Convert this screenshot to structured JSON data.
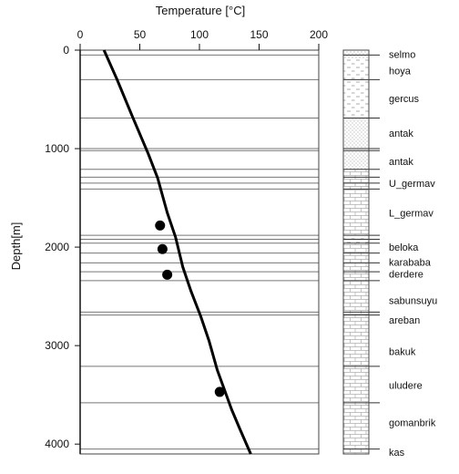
{
  "chart_data": {
    "type": "line",
    "xlabel": "Temperature [°C]",
    "ylabel": "Depth[m]",
    "xlim": [
      0,
      200
    ],
    "ylim": [
      0,
      4100
    ],
    "y_inverted": true,
    "x_axis_position": "top",
    "x_ticks": [
      0,
      50,
      100,
      150,
      200
    ],
    "y_ticks": [
      0,
      1000,
      2000,
      3000,
      4000
    ],
    "series": [
      {
        "style": "line",
        "color": "#000000",
        "points": [
          {
            "x": 20,
            "y": 0
          },
          {
            "x": 31,
            "y": 300
          },
          {
            "x": 44,
            "y": 680
          },
          {
            "x": 57,
            "y": 1050
          },
          {
            "x": 65,
            "y": 1300
          },
          {
            "x": 73,
            "y": 1650
          },
          {
            "x": 80,
            "y": 1900
          },
          {
            "x": 86,
            "y": 2200
          },
          {
            "x": 93,
            "y": 2450
          },
          {
            "x": 101,
            "y": 2700
          },
          {
            "x": 108,
            "y": 2950
          },
          {
            "x": 115,
            "y": 3250
          },
          {
            "x": 121,
            "y": 3450
          },
          {
            "x": 127,
            "y": 3650
          },
          {
            "x": 134,
            "y": 3850
          },
          {
            "x": 143,
            "y": 4100
          }
        ]
      },
      {
        "style": "scatter",
        "color": "#000000",
        "points": [
          {
            "x": 67,
            "y": 1780
          },
          {
            "x": 69,
            "y": 2020
          },
          {
            "x": 73,
            "y": 2280
          },
          {
            "x": 117,
            "y": 3470
          }
        ]
      }
    ],
    "horizontal_lines_depth": [
      50,
      300,
      690,
      1000,
      1020,
      1210,
      1290,
      1350,
      1410,
      1880,
      1920,
      1960,
      2060,
      2160,
      2250,
      2340,
      2660,
      2690,
      3210,
      3580,
      4050
    ]
  },
  "column": {
    "units": [
      {
        "top": 0,
        "bottom": 90,
        "pattern": "dots"
      },
      {
        "top": 90,
        "bottom": 690,
        "pattern": "dashes"
      },
      {
        "top": 690,
        "bottom": 1210,
        "pattern": "dots"
      },
      {
        "top": 1210,
        "bottom": 1880,
        "pattern": "bricks"
      },
      {
        "top": 1880,
        "bottom": 1960,
        "pattern": "dashes"
      },
      {
        "top": 1960,
        "bottom": 2690,
        "pattern": "bricks"
      },
      {
        "top": 2690,
        "bottom": 4100,
        "pattern": "bricks"
      }
    ],
    "labels": [
      {
        "text": "selmo",
        "depth": 40
      },
      {
        "text": "hoya",
        "depth": 210
      },
      {
        "text": "gercus",
        "depth": 490
      },
      {
        "text": "antak",
        "depth": 840
      },
      {
        "text": "antak",
        "depth": 1130
      },
      {
        "text": "U_germav",
        "depth": 1350
      },
      {
        "text": "L_germav",
        "depth": 1650
      },
      {
        "text": "beloka",
        "depth": 2000
      },
      {
        "text": "karababa",
        "depth": 2150
      },
      {
        "text": "derdere",
        "depth": 2270
      },
      {
        "text": "sabunsuyu",
        "depth": 2540
      },
      {
        "text": "areban",
        "depth": 2740
      },
      {
        "text": "bakuk",
        "depth": 3060
      },
      {
        "text": "uludere",
        "depth": 3400
      },
      {
        "text": "gomanbrik",
        "depth": 3780
      },
      {
        "text": "kas",
        "depth": 4080
      }
    ]
  }
}
